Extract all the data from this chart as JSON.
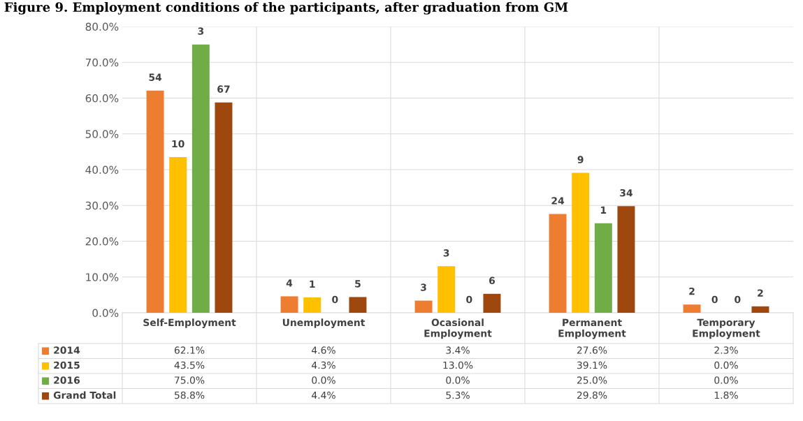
{
  "chart_data": {
    "type": "bar",
    "title": "Figure 9. Employment conditions of the participants, after graduation from GM",
    "categories": [
      "Self-Employment",
      "Unemployment",
      "Ocasional\nEmployment",
      "Permanent\nEmployment",
      "Temporary\nEmployment"
    ],
    "series": [
      {
        "name": "2014",
        "color": "#ed7d31",
        "values": [
          62.1,
          4.6,
          3.4,
          27.6,
          2.3
        ],
        "value_labels": [
          "62.1%",
          "4.6%",
          "3.4%",
          "27.6%",
          "2.3%"
        ]
      },
      {
        "name": "2015",
        "color": "#ffc000",
        "values": [
          43.5,
          4.3,
          13.0,
          39.1,
          0.0
        ],
        "value_labels": [
          "43.5%",
          "4.3%",
          "13.0%",
          "39.1%",
          "0.0%"
        ]
      },
      {
        "name": "2016",
        "color": "#70ad47",
        "values": [
          75.0,
          0.0,
          0.0,
          25.0,
          0.0
        ],
        "value_labels": [
          "75.0%",
          "0.0%",
          "0.0%",
          "25.0%",
          "0.0%"
        ]
      },
      {
        "name": "Grand Total",
        "color": "#9e480e",
        "values": [
          58.8,
          4.4,
          5.3,
          29.8,
          1.8
        ],
        "value_labels": [
          "58.8%",
          "4.4%",
          "5.3%",
          "29.8%",
          "1.8%"
        ]
      }
    ],
    "annotations": [
      "54",
      "10",
      "3",
      "67",
      "4",
      "1",
      "0",
      "5",
      "3",
      "3",
      "0",
      "6",
      "24",
      "9",
      "1",
      "34",
      "2",
      "0",
      "0",
      "2"
    ],
    "data_labels": true,
    "ylim": [
      0,
      80
    ],
    "yticks": [
      {
        "value": 0,
        "label": "0.0%"
      },
      {
        "value": 10,
        "label": "10.0%"
      },
      {
        "value": 20,
        "label": "20.0%"
      },
      {
        "value": 30,
        "label": "30.0%"
      },
      {
        "value": 40,
        "label": "40.0%"
      },
      {
        "value": 50,
        "label": "50.0%"
      },
      {
        "value": 60,
        "label": "60.0%"
      },
      {
        "value": 70,
        "label": "70.0%"
      },
      {
        "value": 80,
        "label": "80.0%"
      }
    ],
    "grid": "y",
    "legend": "bottom"
  }
}
